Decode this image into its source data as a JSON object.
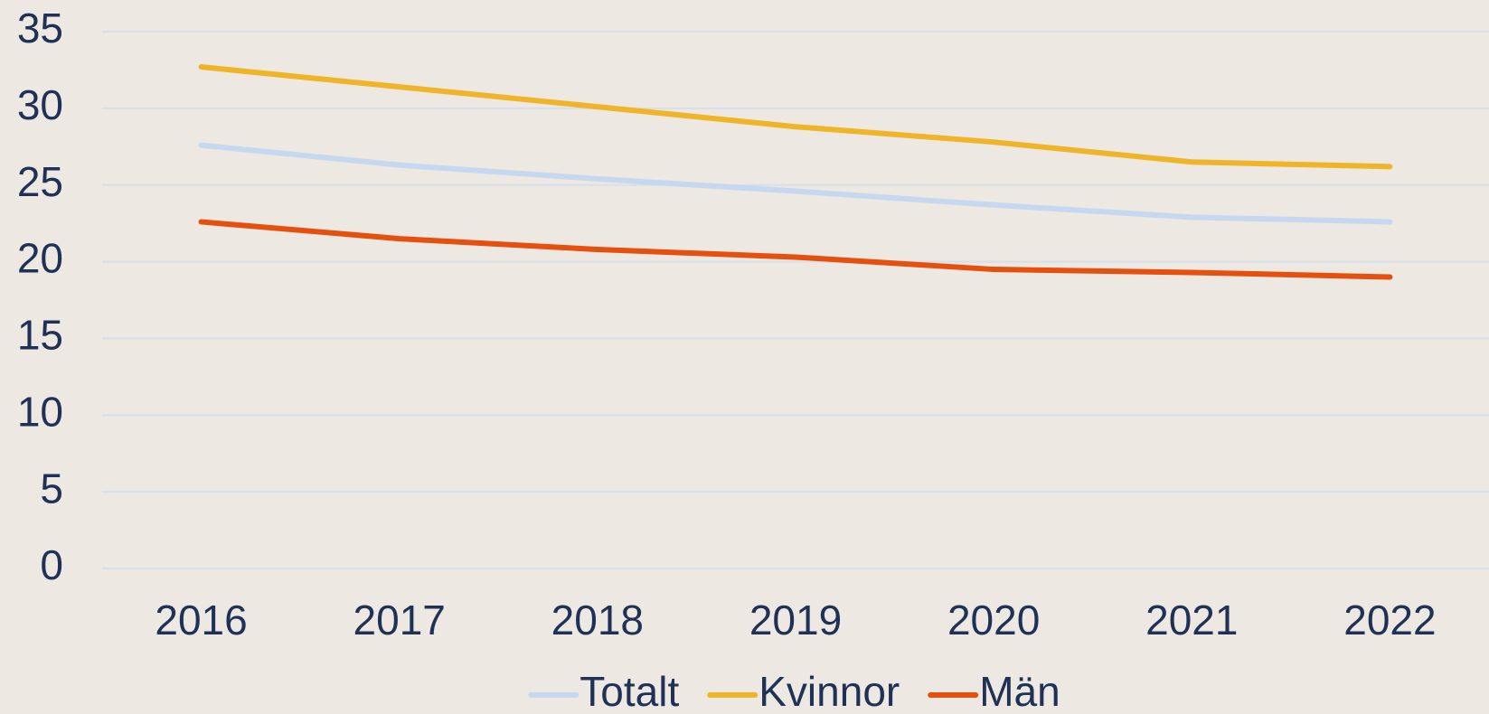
{
  "chart_data": {
    "type": "line",
    "categories": [
      "2016",
      "2017",
      "2018",
      "2019",
      "2020",
      "2021",
      "2022"
    ],
    "series": [
      {
        "name": "Totalt",
        "color": "#c5d8ef",
        "values": [
          27.6,
          26.3,
          25.4,
          24.6,
          23.7,
          22.9,
          22.6
        ]
      },
      {
        "name": "Kvinnor",
        "color": "#f0b429",
        "values": [
          32.7,
          31.4,
          30.1,
          28.8,
          27.8,
          26.5,
          26.2
        ]
      },
      {
        "name": "Män",
        "color": "#e5500f",
        "values": [
          22.6,
          21.5,
          20.8,
          20.3,
          19.5,
          19.3,
          19.0
        ]
      }
    ],
    "ylim": [
      0,
      35
    ],
    "yticks": [
      0,
      5,
      10,
      15,
      20,
      25,
      30,
      35
    ],
    "grid": true,
    "legend": "bottom"
  }
}
